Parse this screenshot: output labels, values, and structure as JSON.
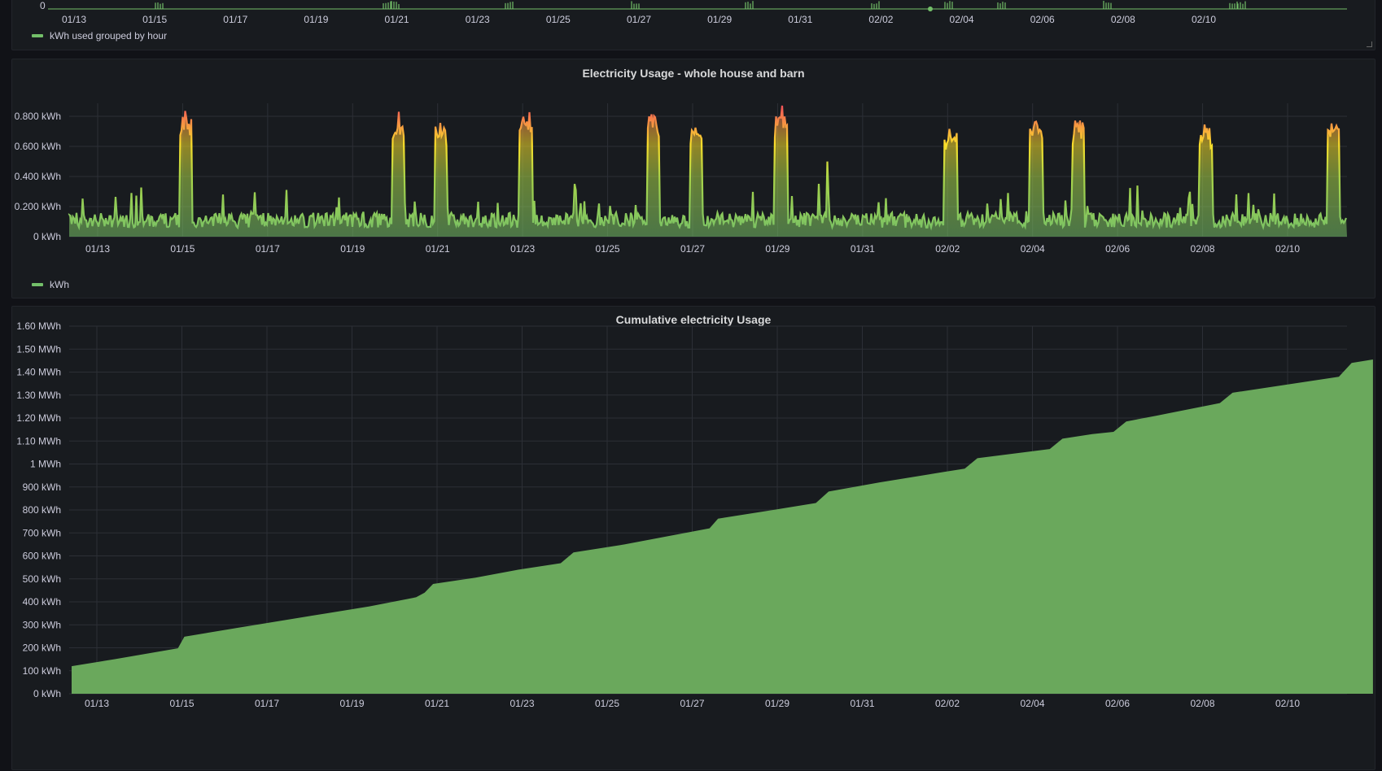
{
  "colors": {
    "background": "#111217",
    "panel": "#181b1f",
    "grid": "#2c2f36",
    "text": "#ccccdc",
    "series_green": "#73bf69",
    "area_fill": "#6aa85c",
    "gradient_low": "#73bf69",
    "gradient_mid": "#fade2a",
    "gradient_high": "#f2495c"
  },
  "top_panel": {
    "y_tick": "0",
    "legend_label": "kWh used grouped by hour",
    "x_ticks": [
      "01/13",
      "01/15",
      "01/17",
      "01/19",
      "01/21",
      "01/23",
      "01/25",
      "01/27",
      "01/29",
      "01/31",
      "02/02",
      "02/04",
      "02/06",
      "02/08",
      "02/10"
    ]
  },
  "usage_panel": {
    "title": "Electricity Usage - whole house and barn",
    "legend_label": "kWh"
  },
  "cumulative_panel": {
    "title": "Cumulative electricity Usage"
  },
  "chart_data": [
    {
      "type": "line",
      "title": "Electricity Usage - whole house and barn",
      "series": [
        {
          "name": "kWh"
        }
      ],
      "x_ticks": [
        "01/13",
        "01/15",
        "01/17",
        "01/19",
        "01/21",
        "01/23",
        "01/25",
        "01/27",
        "01/29",
        "01/31",
        "02/02",
        "02/04",
        "02/06",
        "02/08",
        "02/10"
      ],
      "y_ticks": [
        "0 kWh",
        "0.200 kWh",
        "0.400 kWh",
        "0.600 kWh",
        "0.800 kWh"
      ],
      "ylim": [
        0,
        1.0
      ],
      "baseline_range_kwh": [
        0.05,
        0.25
      ],
      "peaks": [
        {
          "x": "01/15",
          "value": 0.85
        },
        {
          "x": "01/20",
          "value": 0.84
        },
        {
          "x": "01/21",
          "value": 0.8
        },
        {
          "x": "01/23",
          "value": 0.9
        },
        {
          "x": "01/26",
          "value": 0.88
        },
        {
          "x": "01/27",
          "value": 0.82
        },
        {
          "x": "01/29",
          "value": 0.89
        },
        {
          "x": "02/02",
          "value": 0.78
        },
        {
          "x": "02/04",
          "value": 0.81
        },
        {
          "x": "02/05",
          "value": 0.82
        },
        {
          "x": "02/08",
          "value": 0.77
        },
        {
          "x": "02/11",
          "value": 0.83
        }
      ],
      "grid": true,
      "legend": "bottom-left"
    },
    {
      "type": "area",
      "title": "Cumulative electricity Usage",
      "x_ticks": [
        "01/13",
        "01/15",
        "01/17",
        "01/19",
        "01/21",
        "01/23",
        "01/25",
        "01/27",
        "01/29",
        "01/31",
        "02/02",
        "02/04",
        "02/06",
        "02/08",
        "02/10"
      ],
      "y_ticks": [
        "0 kWh",
        "100 kWh",
        "200 kWh",
        "300 kWh",
        "400 kWh",
        "500 kWh",
        "600 kWh",
        "700 kWh",
        "800 kWh",
        "900 kWh",
        "1 MWh",
        "1.10 MWh",
        "1.20 MWh",
        "1.30 MWh",
        "1.40 MWh",
        "1.50 MWh",
        "1.60 MWh"
      ],
      "ylim_kwh": [
        0,
        1600
      ],
      "points": [
        {
          "day": 0.0,
          "kwh": 120
        },
        {
          "day": 1.0,
          "kwh": 150
        },
        {
          "day": 2.5,
          "kwh": 198
        },
        {
          "day": 2.65,
          "kwh": 248
        },
        {
          "day": 4.0,
          "kwh": 290
        },
        {
          "day": 6.0,
          "kwh": 350
        },
        {
          "day": 7.0,
          "kwh": 380
        },
        {
          "day": 8.1,
          "kwh": 420
        },
        {
          "day": 8.3,
          "kwh": 440
        },
        {
          "day": 8.5,
          "kwh": 478
        },
        {
          "day": 9.5,
          "kwh": 505
        },
        {
          "day": 10.5,
          "kwh": 540
        },
        {
          "day": 11.5,
          "kwh": 568
        },
        {
          "day": 11.8,
          "kwh": 615
        },
        {
          "day": 13.0,
          "kwh": 650
        },
        {
          "day": 14.0,
          "kwh": 685
        },
        {
          "day": 15.0,
          "kwh": 720
        },
        {
          "day": 15.2,
          "kwh": 762
        },
        {
          "day": 16.5,
          "kwh": 800
        },
        {
          "day": 17.5,
          "kwh": 830
        },
        {
          "day": 17.8,
          "kwh": 880
        },
        {
          "day": 19.0,
          "kwh": 920
        },
        {
          "day": 20.5,
          "kwh": 965
        },
        {
          "day": 21.0,
          "kwh": 980
        },
        {
          "day": 21.3,
          "kwh": 1025
        },
        {
          "day": 23.0,
          "kwh": 1065
        },
        {
          "day": 23.3,
          "kwh": 1110
        },
        {
          "day": 24.0,
          "kwh": 1130
        },
        {
          "day": 24.5,
          "kwh": 1140
        },
        {
          "day": 24.8,
          "kwh": 1185
        },
        {
          "day": 25.5,
          "kwh": 1210
        },
        {
          "day": 27.0,
          "kwh": 1265
        },
        {
          "day": 27.3,
          "kwh": 1310
        },
        {
          "day": 29.8,
          "kwh": 1380
        },
        {
          "day": 30.1,
          "kwh": 1440
        },
        {
          "day": 30.6,
          "kwh": 1455
        }
      ],
      "grid": true
    }
  ]
}
